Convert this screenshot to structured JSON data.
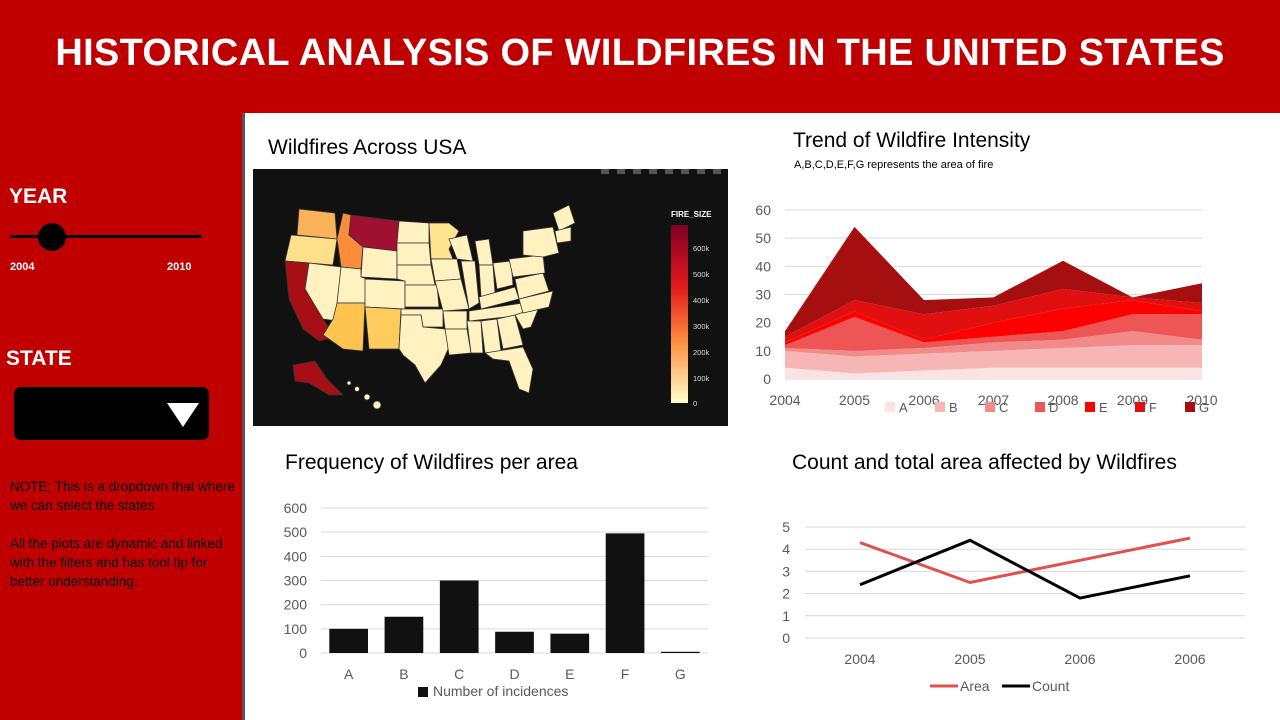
{
  "header": {
    "title": "HISTORICAL ANALYSIS OF WILDFIRES IN THE UNITED STATES"
  },
  "sidebar": {
    "year_label": "YEAR",
    "year_slider": {
      "min_label": "2004",
      "max_label": "2010",
      "value": 2004
    },
    "state_label": "STATE",
    "state_dropdown_value": "",
    "note1": "NOTE: This is a dropdown that where we can select the states",
    "note2": "All the plots are dynamic and linked with the filters and has tool tip for better understanding."
  },
  "map_panel": {
    "title": "Wildfires Across USA",
    "legend_title": "FIRE_SIZE",
    "legend_ticks": [
      "600k",
      "500k",
      "400k",
      "300k",
      "200k",
      "100k",
      "0"
    ]
  },
  "trend_panel": {
    "title": "Trend of Wildfire Intensity",
    "subtitle": "A,B,C,D,E,F,G represents the area of fire"
  },
  "freq_panel": {
    "title": "Frequency  of Wildfires per area"
  },
  "count_panel": {
    "title": "Count and total area affected by Wildfires"
  },
  "colors": {
    "brand_red": "#c00000",
    "series": [
      "#fbe3e3",
      "#f6b6b6",
      "#f28a8a",
      "#ee5555",
      "#ff0000",
      "#e01010",
      "#a50f0f"
    ],
    "bar": "#111111",
    "area_line": "#e05050",
    "count_line": "#000000"
  },
  "chart_data": [
    {
      "type": "area",
      "title": "Trend of Wildfire Intensity",
      "x": [
        "2004",
        "2005",
        "2006",
        "2007",
        "2008",
        "2009",
        "2010"
      ],
      "ylim": [
        0,
        60
      ],
      "yticks": [
        0,
        10,
        20,
        30,
        40,
        50,
        60
      ],
      "stacked": true,
      "legend": "bottom",
      "series": [
        {
          "name": "A",
          "values": [
            4,
            2,
            3,
            4,
            4,
            4,
            4
          ]
        },
        {
          "name": "B",
          "values": [
            6,
            6,
            6,
            6,
            7,
            8,
            8
          ]
        },
        {
          "name": "C",
          "values": [
            1,
            2,
            2,
            3,
            3,
            5,
            2
          ]
        },
        {
          "name": "D",
          "values": [
            1,
            12,
            2,
            2,
            3,
            6,
            9
          ]
        },
        {
          "name": "E",
          "values": [
            1,
            2,
            1,
            5,
            8,
            5,
            1
          ]
        },
        {
          "name": "F",
          "values": [
            2,
            4,
            9,
            6,
            7,
            1,
            3
          ]
        },
        {
          "name": "G",
          "values": [
            2,
            26,
            5,
            3,
            10,
            0,
            7
          ]
        }
      ]
    },
    {
      "type": "bar",
      "title": "Frequency  of Wildfires per area",
      "categories": [
        "A",
        "B",
        "C",
        "D",
        "E",
        "F",
        "G"
      ],
      "ylim": [
        0,
        600
      ],
      "yticks": [
        0,
        100,
        200,
        300,
        400,
        500,
        600
      ],
      "legend": "bottom",
      "series": [
        {
          "name": "Number of incidences",
          "values": [
            100,
            150,
            300,
            88,
            80,
            495,
            5
          ]
        }
      ]
    },
    {
      "type": "line",
      "title": "Count and total area affected by Wildfires",
      "categories": [
        "2004",
        "2005",
        "2006",
        "2006"
      ],
      "ylim": [
        0,
        5
      ],
      "yticks": [
        0,
        1,
        2,
        3,
        4,
        5
      ],
      "legend": "bottom",
      "series": [
        {
          "name": "Area",
          "values": [
            4.3,
            2.5,
            3.5,
            4.5
          ]
        },
        {
          "name": "Count",
          "values": [
            2.4,
            4.4,
            1.8,
            2.8
          ]
        }
      ]
    }
  ]
}
